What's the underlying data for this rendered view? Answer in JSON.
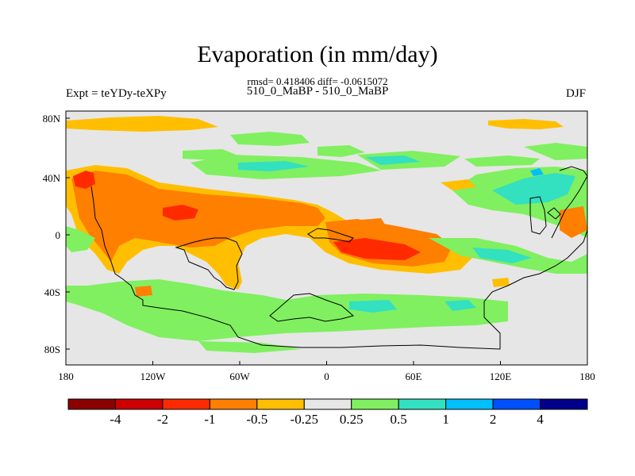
{
  "title": "Evaporation (in mm/day)",
  "stats": "rmsd= 0.418406 diff= -0.0615072",
  "center_label": "510_0_MaBP - 510_0_MaBP",
  "left_label": "Expt = teYDy-teXPy",
  "right_label": "DJF",
  "map": {
    "lon_ticks": [
      "180",
      "120W",
      "60W",
      "0",
      "60E",
      "120E",
      "180"
    ],
    "lat_ticks": [
      "80N",
      "40N",
      "0",
      "40S",
      "80S"
    ],
    "lon_range": [
      -180,
      180
    ],
    "lat_range": [
      -90,
      90
    ],
    "projection": "cylindrical equidistant"
  },
  "colorbar": {
    "colors": [
      "#8b0000",
      "#cc0000",
      "#ff2a00",
      "#ff7f00",
      "#ffbf00",
      "#e6e6e6",
      "#80f060",
      "#33e0c0",
      "#00bfff",
      "#0050ff",
      "#00008b"
    ],
    "labels": [
      "-4",
      "-2",
      "-1",
      "-0.5",
      "-0.25",
      "0.25",
      "0.5",
      "1",
      "2",
      "4"
    ]
  },
  "colors": {
    "background": "#e6e6e6",
    "coast": "#000000"
  }
}
